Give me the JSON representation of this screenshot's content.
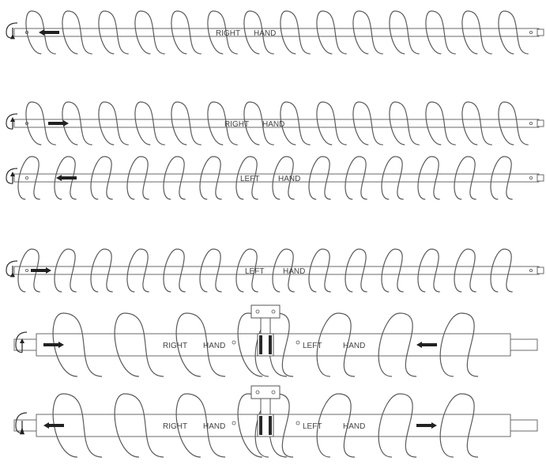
{
  "augers": [
    {
      "id": "auger-1",
      "labels": [
        "RIGHT",
        "HAND"
      ],
      "flight_direction": "right-hand",
      "arrow_direction": "left",
      "rotation_marker": "down"
    },
    {
      "id": "auger-2",
      "labels": [
        "RIGHT",
        "HAND"
      ],
      "flight_direction": "right-hand",
      "arrow_direction": "right",
      "rotation_marker": "up"
    },
    {
      "id": "auger-3",
      "labels": [
        "LEFT",
        "HAND"
      ],
      "flight_direction": "left-hand",
      "arrow_direction": "left",
      "rotation_marker": "up"
    },
    {
      "id": "auger-4",
      "labels": [
        "LEFT",
        "HAND"
      ],
      "flight_direction": "left-hand",
      "arrow_direction": "right",
      "rotation_marker": "down"
    },
    {
      "id": "auger-5",
      "labels": [
        "RIGHT",
        "HAND",
        "LEFT",
        "HAND"
      ],
      "flight_direction": "split",
      "arrow_directions": [
        "right",
        "left"
      ],
      "rotation_marker": "up"
    },
    {
      "id": "auger-6",
      "labels": [
        "RIGHT",
        "HAND",
        "LEFT",
        "HAND"
      ],
      "flight_direction": "split",
      "arrow_directions": [
        "left",
        "right"
      ],
      "rotation_marker": "down"
    }
  ]
}
